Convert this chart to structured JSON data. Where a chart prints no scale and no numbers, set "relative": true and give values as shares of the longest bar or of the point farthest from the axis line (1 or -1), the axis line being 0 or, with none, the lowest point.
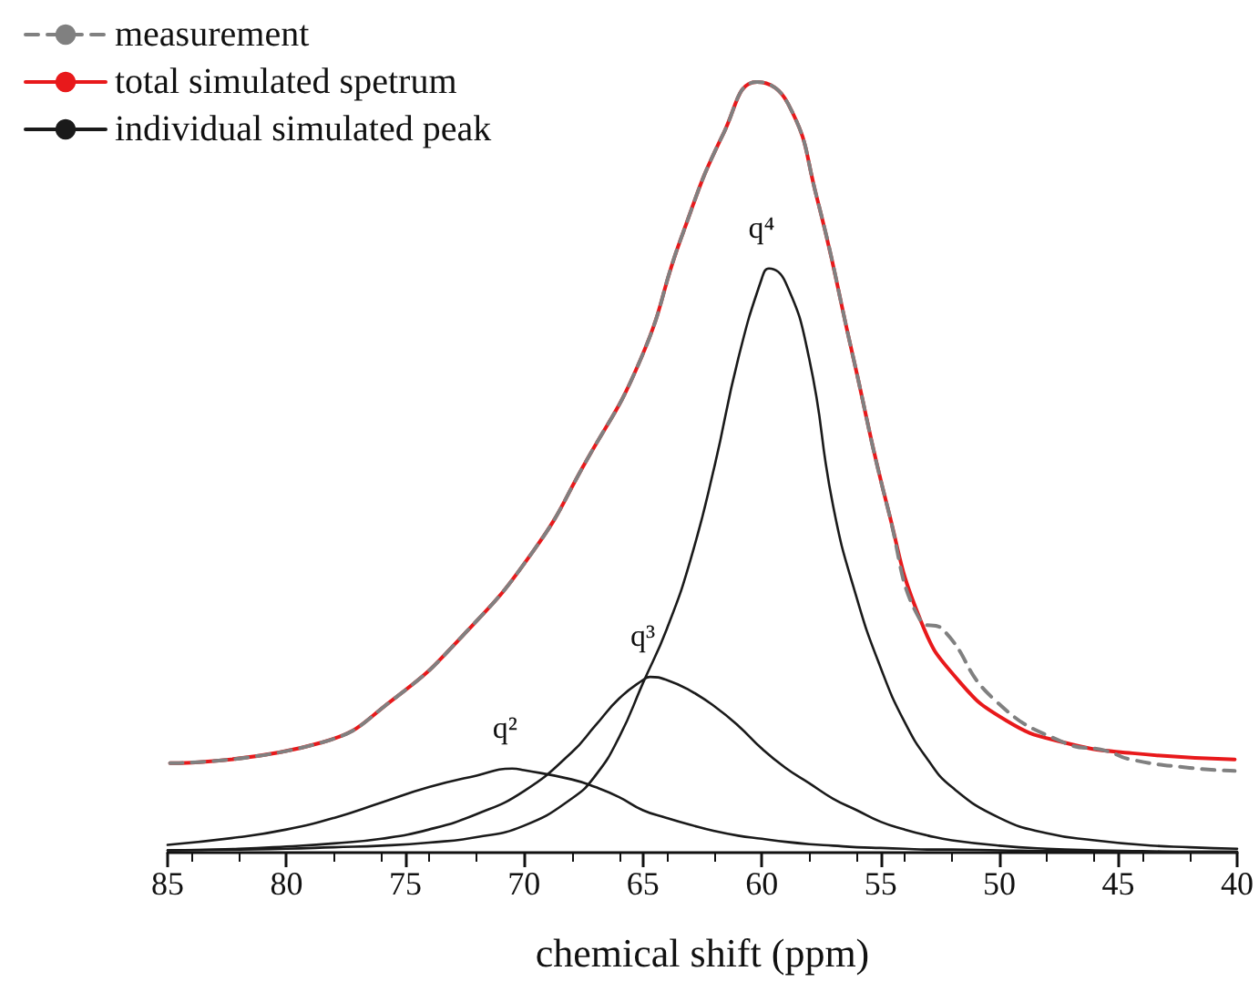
{
  "chart_data": {
    "type": "line",
    "xlabel": "chemical shift (ppm)",
    "xlim": [
      85,
      40
    ],
    "xticks": [
      85,
      80,
      75,
      70,
      65,
      60,
      55,
      50,
      45,
      40
    ],
    "relative": true,
    "tick_labels": "x",
    "grid": false,
    "legend": "top left",
    "marker": "none",
    "series": [
      {
        "name": "measurement",
        "color": "#808080",
        "line_style": "dashed",
        "x": [
          84.9,
          78.5,
          75.5,
          72.6,
          69.6,
          67.5,
          65.1,
          63.4,
          61.6,
          60.2,
          58.9,
          57.7,
          56.2,
          54.7,
          53.3,
          52.4,
          50.3,
          47.3,
          45.5,
          44.5,
          42,
          40.1
        ],
        "values": [
          0.116,
          0.143,
          0.199,
          0.281,
          0.392,
          0.502,
          0.64,
          0.797,
          0.934,
          1.0,
          0.972,
          0.852,
          0.649,
          0.447,
          0.3,
          0.29,
          0.201,
          0.143,
          0.132,
          0.121,
          0.11,
          0.106
        ]
      },
      {
        "name": "total simulated spetrum",
        "color": "#e8191b",
        "line_style": "solid",
        "x": [
          84.9,
          78.5,
          75.5,
          72.6,
          69.6,
          67.5,
          65.1,
          63.4,
          61.6,
          60.2,
          58.9,
          57.7,
          56.2,
          54.7,
          53.3,
          51.8,
          49.7,
          47.3,
          44.4,
          40.1
        ],
        "values": [
          0.116,
          0.143,
          0.199,
          0.281,
          0.392,
          0.502,
          0.64,
          0.797,
          0.934,
          1.0,
          0.972,
          0.852,
          0.649,
          0.447,
          0.3,
          0.226,
          0.171,
          0.143,
          0.129,
          0.121
        ]
      },
      {
        "name": "individual simulated peak",
        "color": "#1a1a1a",
        "line_style": "solid",
        "x": [
          85,
          82,
          80,
          78,
          76,
          74,
          72,
          70,
          68,
          67,
          66,
          65,
          64,
          63,
          62,
          61,
          60,
          59.7,
          59,
          58,
          57,
          56,
          55,
          54,
          53,
          52,
          50,
          48,
          46,
          44,
          42,
          40
        ],
        "values": [
          0.003,
          0.004,
          0.005,
          0.007,
          0.009,
          0.013,
          0.02,
          0.035,
          0.07,
          0.1,
          0.15,
          0.22,
          0.29,
          0.38,
          0.5,
          0.64,
          0.745,
          0.758,
          0.74,
          0.64,
          0.45,
          0.33,
          0.24,
          0.17,
          0.12,
          0.085,
          0.045,
          0.025,
          0.016,
          0.01,
          0.007,
          0.005
        ]
      },
      {
        "color": "#1a1a1a",
        "line_style": "solid",
        "x": [
          85,
          82,
          80,
          78,
          76,
          74,
          72,
          70,
          68,
          67,
          66,
          65,
          64.7,
          64,
          63,
          62,
          61,
          60,
          59,
          58,
          57,
          56,
          55,
          54,
          53,
          52,
          50,
          48,
          46,
          44,
          42,
          40
        ],
        "values": [
          0.003,
          0.005,
          0.008,
          0.012,
          0.018,
          0.03,
          0.05,
          0.08,
          0.13,
          0.165,
          0.2,
          0.224,
          0.228,
          0.224,
          0.21,
          0.19,
          0.165,
          0.135,
          0.11,
          0.09,
          0.07,
          0.055,
          0.04,
          0.03,
          0.022,
          0.016,
          0.009,
          0.005,
          0.003,
          0.002,
          0.001,
          0.001
        ]
      },
      {
        "color": "#1a1a1a",
        "line_style": "solid",
        "x": [
          85,
          82,
          80,
          78,
          76,
          74,
          72,
          70.5,
          70,
          68,
          67,
          66,
          65,
          64,
          63,
          62,
          61,
          60,
          59,
          58,
          57,
          56,
          55,
          54,
          53,
          52,
          50,
          48,
          46,
          44,
          42,
          40
        ],
        "values": [
          0.01,
          0.02,
          0.03,
          0.045,
          0.065,
          0.085,
          0.1,
          0.109,
          0.107,
          0.095,
          0.085,
          0.072,
          0.055,
          0.045,
          0.036,
          0.028,
          0.022,
          0.018,
          0.014,
          0.011,
          0.009,
          0.007,
          0.006,
          0.005,
          0.004,
          0.004,
          0.003,
          0.002,
          0.002,
          0.001,
          0.001,
          0.001
        ]
      }
    ],
    "annotations": [
      {
        "text": "q⁴",
        "x": 59.7,
        "y": 0.758
      },
      {
        "text": "q³",
        "x": 64.7,
        "y": 0.228
      },
      {
        "text": "q²",
        "x": 70.5,
        "y": 0.109
      }
    ]
  }
}
